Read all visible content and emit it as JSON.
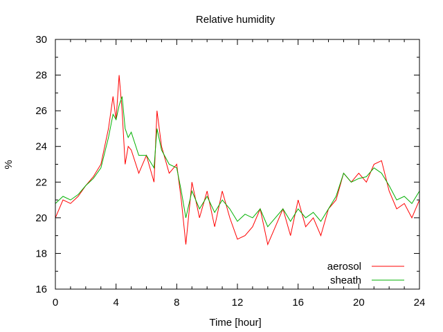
{
  "chart_data": {
    "type": "line",
    "title": "Relative humidity",
    "xlabel": "Time [hour]",
    "ylabel": "%",
    "xlim": [
      0,
      24
    ],
    "ylim": [
      16,
      30
    ],
    "xticks": [
      0,
      4,
      8,
      12,
      16,
      20,
      24
    ],
    "yticks": [
      16,
      18,
      20,
      22,
      24,
      26,
      28,
      30
    ],
    "xtick_labels": [
      "0",
      "4",
      "8",
      "12",
      "16",
      "20",
      "24"
    ],
    "ytick_labels": [
      "16",
      "18",
      "20",
      "22",
      "24",
      "26",
      "28",
      "30"
    ],
    "grid": false,
    "legend_position": "bottom-right",
    "series": [
      {
        "name": "aerosol",
        "color": "#ff0000",
        "x": [
          0.0,
          0.5,
          1.0,
          1.5,
          2.0,
          2.5,
          3.0,
          3.5,
          3.8,
          4.0,
          4.2,
          4.4,
          4.6,
          4.8,
          5.0,
          5.5,
          6.0,
          6.5,
          6.7,
          7.0,
          7.5,
          8.0,
          8.3,
          8.6,
          9.0,
          9.5,
          10.0,
          10.5,
          11.0,
          11.5,
          12.0,
          12.5,
          13.0,
          13.5,
          14.0,
          14.5,
          15.0,
          15.5,
          16.0,
          16.5,
          17.0,
          17.5,
          18.0,
          18.5,
          19.0,
          19.5,
          20.0,
          20.5,
          21.0,
          21.5,
          22.0,
          22.5,
          23.0,
          23.5,
          24.0
        ],
        "y": [
          20.0,
          21.0,
          20.8,
          21.2,
          21.8,
          22.3,
          23.0,
          25.0,
          26.8,
          25.5,
          28.0,
          26.0,
          23.0,
          24.0,
          23.8,
          22.5,
          23.5,
          22.0,
          26.0,
          24.0,
          22.5,
          23.0,
          21.0,
          18.5,
          22.0,
          20.0,
          21.5,
          19.5,
          21.5,
          20.0,
          18.8,
          19.0,
          19.5,
          20.5,
          18.5,
          19.5,
          20.5,
          19.0,
          21.0,
          19.5,
          20.0,
          19.0,
          20.5,
          21.0,
          22.5,
          22.0,
          22.5,
          22.0,
          23.0,
          23.2,
          21.5,
          20.5,
          20.8,
          20.0,
          21.0
        ]
      },
      {
        "name": "sheath",
        "color": "#00b000",
        "x": [
          0.0,
          0.5,
          1.0,
          1.5,
          2.0,
          2.5,
          3.0,
          3.5,
          3.8,
          4.0,
          4.2,
          4.4,
          4.6,
          4.8,
          5.0,
          5.5,
          6.0,
          6.5,
          6.7,
          7.0,
          7.5,
          8.0,
          8.3,
          8.6,
          9.0,
          9.5,
          10.0,
          10.5,
          11.0,
          11.5,
          12.0,
          12.5,
          13.0,
          13.5,
          14.0,
          14.5,
          15.0,
          15.5,
          16.0,
          16.5,
          17.0,
          17.5,
          18.0,
          18.5,
          19.0,
          19.5,
          20.0,
          20.5,
          21.0,
          21.5,
          22.0,
          22.5,
          23.0,
          23.5,
          24.0
        ],
        "y": [
          20.8,
          21.2,
          21.0,
          21.3,
          21.8,
          22.2,
          22.8,
          24.5,
          25.8,
          25.5,
          26.3,
          26.8,
          25.0,
          24.5,
          24.8,
          23.5,
          23.5,
          22.8,
          25.0,
          23.8,
          23.0,
          22.8,
          21.5,
          20.0,
          21.5,
          20.5,
          21.2,
          20.3,
          21.0,
          20.5,
          19.8,
          20.2,
          20.0,
          20.5,
          19.5,
          20.0,
          20.5,
          19.8,
          20.5,
          20.0,
          20.3,
          19.8,
          20.5,
          21.2,
          22.5,
          22.0,
          22.2,
          22.3,
          22.8,
          22.5,
          21.8,
          21.0,
          21.2,
          20.8,
          21.5
        ]
      }
    ]
  }
}
